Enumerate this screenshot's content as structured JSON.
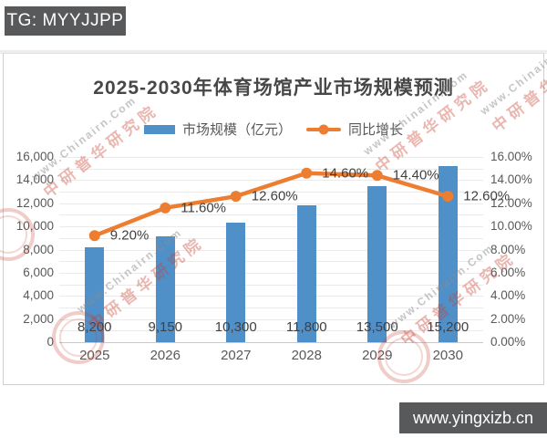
{
  "page": {
    "top_badge": "TG: MYYJJPP",
    "bottom_badge": "www.yingxizb.cn",
    "badge_bg": "#58595b"
  },
  "watermark": {
    "url_text": "www.Chinairn.Com",
    "stamp_text": "中研普华研究院",
    "red": "#c73e2f",
    "gray": "#8c8c8c"
  },
  "chart_data": {
    "type": "bar+line",
    "title": "2025-2030年体育场馆产业市场规模预测",
    "categories": [
      "2025",
      "2026",
      "2027",
      "2028",
      "2029",
      "2030"
    ],
    "series": [
      {
        "name": "市场规模（亿元）",
        "type": "bar",
        "axis": "left",
        "color": "#5090C8",
        "values": [
          8200,
          9150,
          10300,
          11800,
          13500,
          15200
        ],
        "labels": [
          "8,200",
          "9,150",
          "10,300",
          "11,800",
          "13,500",
          "15,200"
        ]
      },
      {
        "name": "同比增长",
        "type": "line",
        "axis": "right",
        "color": "#ED7D31",
        "values": [
          9.2,
          11.6,
          12.6,
          14.6,
          14.4,
          12.6
        ],
        "labels": [
          "9.20%",
          "11.60%",
          "12.60%",
          "14.60%",
          "14.40%",
          "12.60%"
        ]
      }
    ],
    "left_axis": {
      "min": 0,
      "max": 16000,
      "tick_step": 2000,
      "minor_step": 1000,
      "tick_labels": [
        "0",
        "2,000",
        "4,000",
        "6,000",
        "8,000",
        "10,000",
        "12,000",
        "14,000",
        "16,000"
      ]
    },
    "right_axis": {
      "min": 0,
      "max": 16,
      "tick_step": 2,
      "tick_labels": [
        "0.00%",
        "2.00%",
        "4.00%",
        "6.00%",
        "8.00%",
        "10.00%",
        "12.00%",
        "14.00%",
        "16.00%"
      ]
    },
    "legend_position": "top",
    "grid": true
  }
}
